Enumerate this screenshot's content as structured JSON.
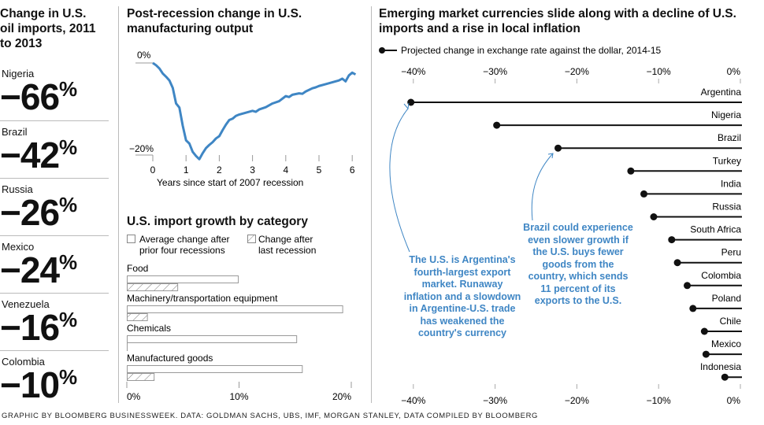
{
  "left": {
    "title": "Change in U.S. oil imports, 2011 to 2013",
    "items": [
      {
        "country": "Nigeria",
        "value": "−66",
        "unit": "%"
      },
      {
        "country": "Brazil",
        "value": "−42",
        "unit": "%"
      },
      {
        "country": "Russia",
        "value": "−26",
        "unit": "%"
      },
      {
        "country": "Mexico",
        "value": "−24",
        "unit": "%"
      },
      {
        "country": "Venezuela",
        "value": "−16",
        "unit": "%"
      },
      {
        "country": "Colombia",
        "value": "−10",
        "unit": "%"
      }
    ]
  },
  "footer": "GRAPHIC BY BLOOMBERG BUSINESSWEEK. DATA: GOLDMAN SACHS, UBS, IMF, MORGAN STANLEY, DATA COMPILED BY BLOOMBERG",
  "colors": {
    "line": "#3f86c4",
    "dot": "#111111"
  },
  "chart_data": [
    {
      "type": "line",
      "title": "Post-recession change in U.S. manufacturing output",
      "xlabel": "Years since start of 2007 recession",
      "xlim": [
        0,
        6.1
      ],
      "ylim": [
        -21,
        0
      ],
      "xticks": [
        "0",
        "1",
        "2",
        "3",
        "4",
        "5",
        "6"
      ],
      "yticks": [
        "0%",
        "−20%"
      ],
      "x": [
        0,
        0.1,
        0.2,
        0.3,
        0.4,
        0.5,
        0.6,
        0.7,
        0.8,
        0.9,
        1.0,
        1.1,
        1.2,
        1.3,
        1.4,
        1.5,
        1.6,
        1.7,
        1.8,
        1.9,
        2.0,
        2.1,
        2.2,
        2.3,
        2.4,
        2.5,
        2.6,
        2.8,
        3.0,
        3.1,
        3.2,
        3.4,
        3.6,
        3.8,
        4.0,
        4.1,
        4.2,
        4.4,
        4.5,
        4.6,
        4.8,
        4.9,
        5.0,
        5.2,
        5.4,
        5.6,
        5.7,
        5.8,
        5.9,
        6.0,
        6.1
      ],
      "y": [
        0,
        -0.5,
        -1.2,
        -2.3,
        -3,
        -3.8,
        -5.4,
        -8.8,
        -9.7,
        -13.6,
        -16.8,
        -17.5,
        -19.3,
        -20.2,
        -20.9,
        -19.6,
        -18.5,
        -17.8,
        -17.2,
        -16.4,
        -15.9,
        -14.6,
        -13.4,
        -12.4,
        -12.1,
        -11.5,
        -11.2,
        -10.8,
        -10.4,
        -10.6,
        -10.1,
        -9.6,
        -8.8,
        -8.3,
        -7.2,
        -7.4,
        -6.9,
        -6.6,
        -6.7,
        -6.2,
        -5.5,
        -5.3,
        -5.0,
        -4.6,
        -4.2,
        -3.8,
        -3.4,
        -4.0,
        -2.7,
        -2.1,
        -2.5
      ]
    },
    {
      "type": "bar",
      "title": "U.S. import growth by category",
      "xlim": [
        0,
        20
      ],
      "xticks": [
        "0%",
        "10%",
        "20%"
      ],
      "legend": [
        "Average change after prior four recessions",
        "Change after last recession"
      ],
      "legend_lines": [
        [
          "Average change after",
          "prior four recessions"
        ],
        [
          "Change after",
          "last recession"
        ]
      ],
      "categories": [
        "Food",
        "Machinery/transportation equipment",
        "Chemicals",
        "Manufactured goods"
      ],
      "series": [
        {
          "name": "Average change after prior four recessions",
          "values": [
            9.9,
            19.2,
            15.1,
            15.6
          ]
        },
        {
          "name": "Change after last recession",
          "values": [
            4.5,
            1.8,
            0,
            2.4
          ]
        }
      ]
    },
    {
      "type": "bar",
      "title": "Emerging market currencies slide along with a decline of U.S. imports and a rise in local inflation",
      "legend": "Projected change in exchange rate against the dollar, 2014-15",
      "xlim": [
        -40,
        0
      ],
      "xticks": [
        "−40%",
        "−30%",
        "−20%",
        "−10%",
        "0%"
      ],
      "categories": [
        "Argentina",
        "Nigeria",
        "Brazil",
        "Turkey",
        "India",
        "Russia",
        "South Africa",
        "Peru",
        "Colombia",
        "Poland",
        "Chile",
        "Mexico",
        "Indonesia"
      ],
      "values": [
        -40.3,
        -29.8,
        -22.3,
        -13.4,
        -11.8,
        -10.6,
        -8.4,
        -7.7,
        -6.5,
        -5.8,
        -4.4,
        -4.2,
        -1.9
      ],
      "annotations": [
        "The U.S. is Argentina's fourth-largest export market. Runaway inflation and a slowdown in Argentine-U.S. trade has weakened the country's currency",
        "Brazil could experience even slower growth if the U.S. buys fewer goods from the country, which sends 11 percent of its exports to the U.S."
      ]
    }
  ]
}
